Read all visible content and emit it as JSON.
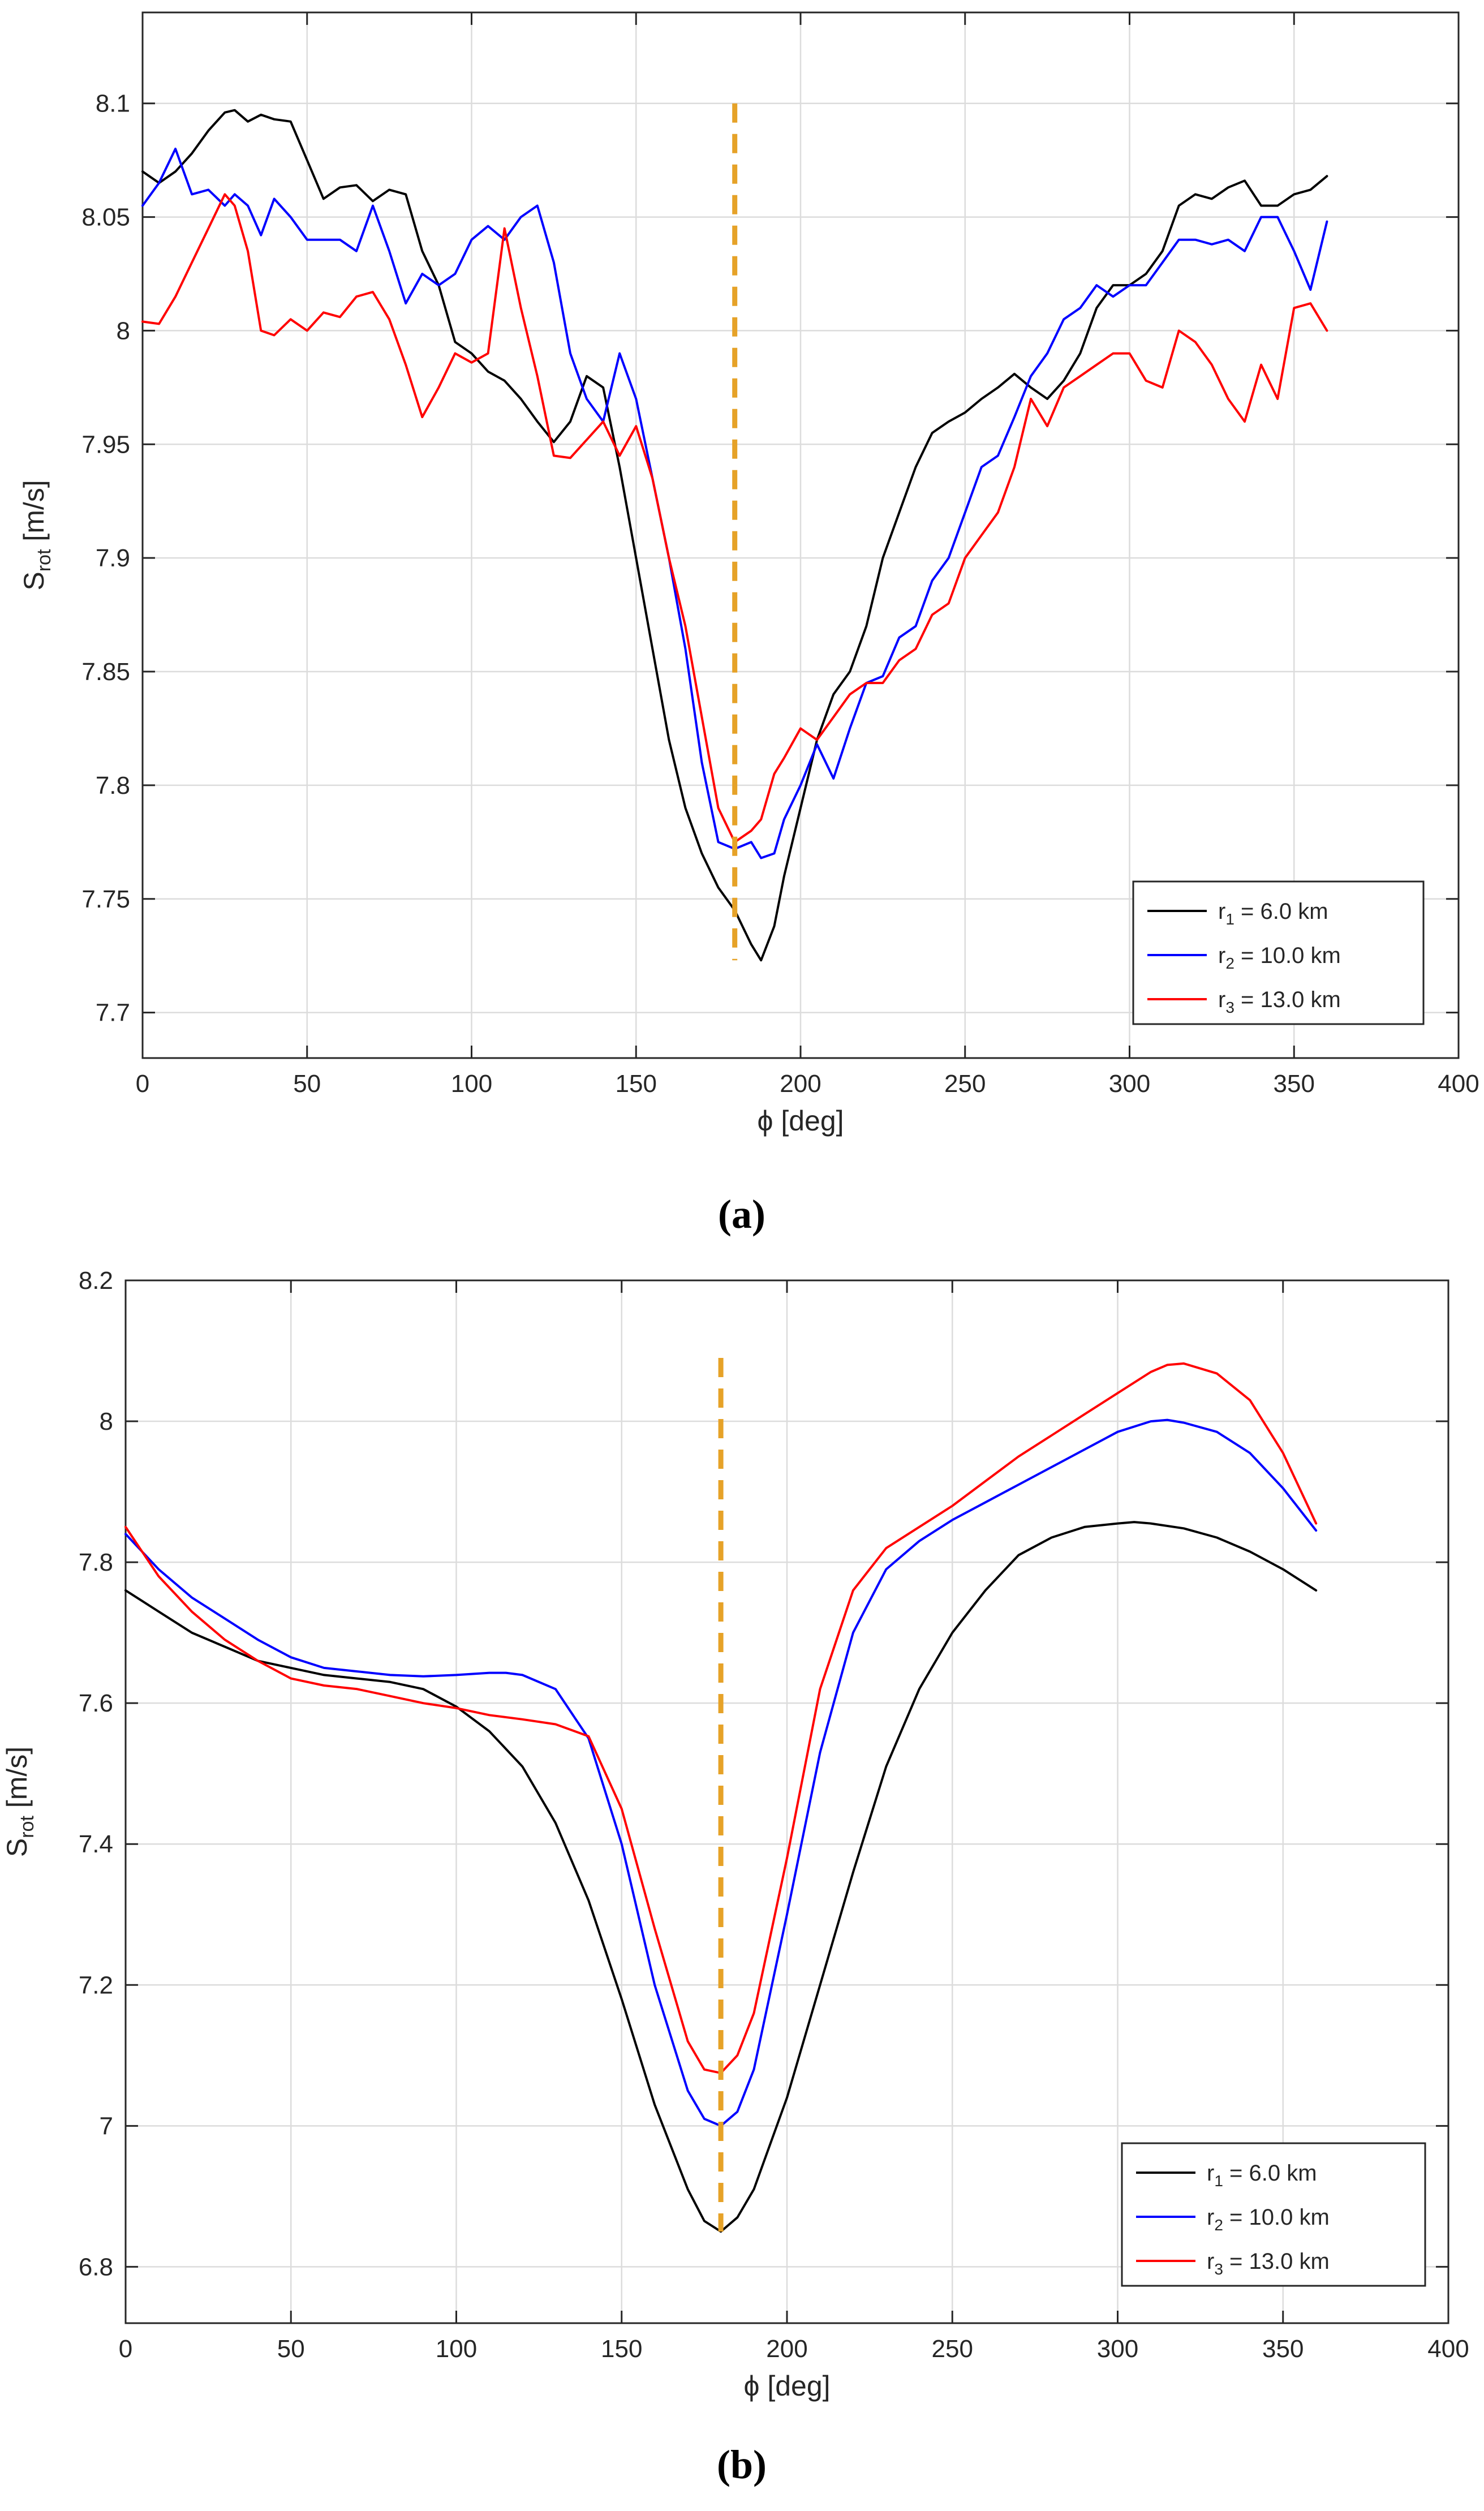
{
  "colors": {
    "r1": "#000000",
    "r2": "#0000ff",
    "r3": "#ff0000",
    "marker": "#e6a228",
    "grid": "#dcdcdc",
    "axes": "#262626",
    "text": "#262626"
  },
  "chart_data": [
    {
      "type": "line",
      "panel_label": "(a)",
      "xlabel": "ϕ [deg]",
      "ylabel_main": "S",
      "ylabel_sub": "rot",
      "ylabel_unit": " [m/s]",
      "xlim": [
        0,
        400
      ],
      "ylim": [
        7.68,
        8.14
      ],
      "xticks": [
        0,
        50,
        100,
        150,
        200,
        250,
        300,
        350,
        400
      ],
      "yticks": [
        7.7,
        7.75,
        7.8,
        7.85,
        7.9,
        7.95,
        8,
        8.05,
        8.1
      ],
      "xtick_labels": [
        "0",
        "50",
        "100",
        "150",
        "200",
        "250",
        "300",
        "350",
        "400"
      ],
      "ytick_labels": [
        "7.7",
        "7.75",
        "7.8",
        "7.85",
        "7.9",
        "7.95",
        "8",
        "8.05",
        "8.1"
      ],
      "grid": true,
      "legend_position": "bottom-right",
      "vline": {
        "x": 180,
        "y": [
          7.723,
          8.1
        ],
        "style": "dashed"
      },
      "series": [
        {
          "key": "r1",
          "legend": {
            "main": "r",
            "sub": "1",
            "rest": " = 6.0 km"
          },
          "x": [
            0,
            5,
            10,
            15,
            20,
            25,
            28,
            32,
            36,
            40,
            45,
            50,
            55,
            60,
            65,
            70,
            75,
            80,
            85,
            90,
            95,
            100,
            105,
            110,
            115,
            120,
            125,
            130,
            135,
            140,
            145,
            150,
            155,
            160,
            165,
            170,
            175,
            180,
            185,
            188,
            192,
            195,
            200,
            205,
            210,
            215,
            220,
            225,
            230,
            235,
            240,
            245,
            250,
            255,
            260,
            265,
            270,
            275,
            280,
            285,
            290,
            295,
            300,
            305,
            310,
            315,
            320,
            325,
            330,
            335,
            340,
            345,
            350,
            355,
            360
          ],
          "y": [
            8.07,
            8.065,
            8.07,
            8.078,
            8.088,
            8.096,
            8.097,
            8.092,
            8.095,
            8.093,
            8.092,
            8.075,
            8.058,
            8.063,
            8.064,
            8.057,
            8.062,
            8.06,
            8.035,
            8.02,
            7.995,
            7.99,
            7.982,
            7.978,
            7.97,
            7.96,
            7.951,
            7.96,
            7.98,
            7.975,
            7.94,
            7.9,
            7.86,
            7.82,
            7.79,
            7.77,
            7.755,
            7.745,
            7.73,
            7.723,
            7.738,
            7.76,
            7.79,
            7.82,
            7.84,
            7.85,
            7.87,
            7.9,
            7.92,
            7.94,
            7.955,
            7.96,
            7.964,
            7.97,
            7.975,
            7.981,
            7.975,
            7.97,
            7.978,
            7.99,
            8.01,
            8.02,
            8.02,
            8.025,
            8.035,
            8.055,
            8.06,
            8.058,
            8.063,
            8.066,
            8.055,
            8.055,
            8.06,
            8.062,
            8.068
          ]
        },
        {
          "key": "r2",
          "legend": {
            "main": "r",
            "sub": "2",
            "rest": " = 10.0 km"
          },
          "x": [
            0,
            5,
            10,
            15,
            20,
            25,
            28,
            32,
            36,
            40,
            45,
            50,
            55,
            60,
            65,
            70,
            75,
            80,
            85,
            90,
            95,
            100,
            105,
            110,
            115,
            120,
            125,
            130,
            135,
            140,
            145,
            150,
            155,
            160,
            165,
            170,
            175,
            180,
            185,
            188,
            192,
            195,
            200,
            205,
            210,
            215,
            220,
            225,
            230,
            235,
            240,
            245,
            250,
            255,
            260,
            265,
            270,
            275,
            280,
            285,
            290,
            295,
            300,
            305,
            310,
            315,
            320,
            325,
            330,
            335,
            340,
            345,
            350,
            355,
            360
          ],
          "y": [
            8.055,
            8.065,
            8.08,
            8.06,
            8.062,
            8.055,
            8.06,
            8.055,
            8.042,
            8.058,
            8.05,
            8.04,
            8.04,
            8.04,
            8.035,
            8.055,
            8.035,
            8.012,
            8.025,
            8.02,
            8.025,
            8.04,
            8.046,
            8.04,
            8.05,
            8.055,
            8.03,
            7.99,
            7.97,
            7.96,
            7.99,
            7.97,
            7.935,
            7.9,
            7.86,
            7.81,
            7.775,
            7.772,
            7.775,
            7.768,
            7.77,
            7.785,
            7.8,
            7.818,
            7.803,
            7.825,
            7.845,
            7.848,
            7.865,
            7.87,
            7.89,
            7.9,
            7.92,
            7.94,
            7.945,
            7.962,
            7.98,
            7.99,
            8.005,
            8.01,
            8.02,
            8.015,
            8.02,
            8.02,
            8.03,
            8.04,
            8.04,
            8.038,
            8.04,
            8.035,
            8.05,
            8.05,
            8.035,
            8.018,
            8.048
          ]
        },
        {
          "key": "r3",
          "legend": {
            "main": "r",
            "sub": "3",
            "rest": " = 13.0 km"
          },
          "x": [
            0,
            5,
            10,
            15,
            20,
            25,
            28,
            32,
            36,
            40,
            45,
            50,
            55,
            60,
            65,
            70,
            75,
            80,
            85,
            90,
            95,
            100,
            105,
            110,
            115,
            120,
            125,
            130,
            135,
            140,
            145,
            150,
            155,
            160,
            165,
            170,
            175,
            180,
            185,
            188,
            192,
            195,
            200,
            205,
            210,
            215,
            220,
            225,
            230,
            235,
            240,
            245,
            250,
            255,
            260,
            265,
            270,
            275,
            280,
            285,
            290,
            295,
            300,
            305,
            310,
            315,
            320,
            325,
            330,
            335,
            340,
            345,
            350,
            355,
            360
          ],
          "y": [
            8.004,
            8.003,
            8.015,
            8.03,
            8.045,
            8.06,
            8.055,
            8.035,
            8.0,
            7.998,
            8.005,
            8.0,
            8.008,
            8.006,
            8.015,
            8.017,
            8.005,
            7.985,
            7.962,
            7.975,
            7.99,
            7.986,
            7.99,
            8.045,
            8.01,
            7.98,
            7.945,
            7.944,
            7.952,
            7.96,
            7.945,
            7.958,
            7.935,
            7.9,
            7.87,
            7.83,
            7.79,
            7.775,
            7.78,
            7.785,
            7.805,
            7.812,
            7.825,
            7.82,
            7.83,
            7.84,
            7.845,
            7.845,
            7.855,
            7.86,
            7.875,
            7.88,
            7.9,
            7.91,
            7.92,
            7.94,
            7.97,
            7.958,
            7.975,
            7.98,
            7.985,
            7.99,
            7.99,
            7.978,
            7.975,
            8.0,
            7.995,
            7.985,
            7.97,
            7.96,
            7.985,
            7.97,
            8.01,
            8.012,
            8.0
          ]
        }
      ]
    },
    {
      "type": "line",
      "panel_label": "(b)",
      "xlabel": "ϕ [deg]",
      "ylabel_main": "S",
      "ylabel_sub": "rot",
      "ylabel_unit": " [m/s]",
      "xlim": [
        0,
        400
      ],
      "ylim": [
        6.72,
        8.2
      ],
      "xticks": [
        0,
        50,
        100,
        150,
        200,
        250,
        300,
        350,
        400
      ],
      "yticks": [
        6.8,
        7,
        7.2,
        7.4,
        7.6,
        7.8,
        8,
        8.2
      ],
      "xtick_labels": [
        "0",
        "50",
        "100",
        "150",
        "200",
        "250",
        "300",
        "350",
        "400"
      ],
      "ytick_labels": [
        "6.8",
        "7",
        "7.2",
        "7.4",
        "7.6",
        "7.8",
        "8",
        "8.2"
      ],
      "grid": true,
      "legend_position": "bottom-right",
      "vline": {
        "x": 180,
        "y": [
          6.85,
          8.09
        ],
        "style": "dashed"
      },
      "series": [
        {
          "key": "r1",
          "legend": {
            "main": "r",
            "sub": "1",
            "rest": " = 6.0 km"
          },
          "x": [
            0,
            10,
            20,
            30,
            40,
            50,
            60,
            70,
            80,
            90,
            100,
            110,
            120,
            130,
            140,
            150,
            160,
            170,
            175,
            180,
            185,
            190,
            200,
            210,
            220,
            230,
            240,
            250,
            260,
            270,
            280,
            290,
            300,
            305,
            310,
            320,
            330,
            340,
            350,
            360
          ],
          "y": [
            7.76,
            7.73,
            7.7,
            7.68,
            7.66,
            7.65,
            7.64,
            7.635,
            7.63,
            7.62,
            7.595,
            7.56,
            7.51,
            7.43,
            7.32,
            7.18,
            7.03,
            6.91,
            6.865,
            6.85,
            6.87,
            6.91,
            7.04,
            7.2,
            7.36,
            7.51,
            7.62,
            7.7,
            7.76,
            7.81,
            7.835,
            7.85,
            7.855,
            7.857,
            7.855,
            7.848,
            7.835,
            7.815,
            7.79,
            7.76
          ]
        },
        {
          "key": "r2",
          "legend": {
            "main": "r",
            "sub": "2",
            "rest": " = 10.0 km"
          },
          "x": [
            0,
            10,
            20,
            30,
            40,
            50,
            60,
            70,
            80,
            90,
            100,
            110,
            115,
            120,
            130,
            140,
            150,
            160,
            170,
            175,
            180,
            185,
            190,
            200,
            210,
            220,
            230,
            240,
            250,
            260,
            270,
            280,
            290,
            300,
            310,
            315,
            320,
            330,
            340,
            350,
            360
          ],
          "y": [
            7.84,
            7.79,
            7.75,
            7.72,
            7.69,
            7.665,
            7.65,
            7.645,
            7.64,
            7.638,
            7.64,
            7.643,
            7.643,
            7.64,
            7.62,
            7.55,
            7.4,
            7.2,
            7.05,
            7.01,
            7.0,
            7.02,
            7.08,
            7.3,
            7.53,
            7.7,
            7.79,
            7.83,
            7.86,
            7.885,
            7.91,
            7.935,
            7.96,
            7.985,
            8.0,
            8.002,
            7.998,
            7.985,
            7.955,
            7.905,
            7.845
          ]
        },
        {
          "key": "r3",
          "legend": {
            "main": "r",
            "sub": "3",
            "rest": " = 13.0 km"
          },
          "x": [
            0,
            10,
            20,
            30,
            40,
            50,
            60,
            70,
            80,
            90,
            100,
            110,
            120,
            130,
            140,
            150,
            160,
            170,
            175,
            180,
            185,
            190,
            200,
            210,
            220,
            230,
            240,
            250,
            260,
            270,
            280,
            290,
            300,
            310,
            315,
            320,
            330,
            340,
            350,
            360
          ],
          "y": [
            7.85,
            7.78,
            7.73,
            7.69,
            7.66,
            7.635,
            7.625,
            7.62,
            7.61,
            7.6,
            7.593,
            7.583,
            7.577,
            7.57,
            7.553,
            7.45,
            7.28,
            7.12,
            7.08,
            7.075,
            7.1,
            7.16,
            7.38,
            7.62,
            7.76,
            7.82,
            7.85,
            7.88,
            7.915,
            7.95,
            7.98,
            8.01,
            8.04,
            8.07,
            8.08,
            8.082,
            8.068,
            8.03,
            7.955,
            7.855
          ]
        }
      ]
    }
  ]
}
